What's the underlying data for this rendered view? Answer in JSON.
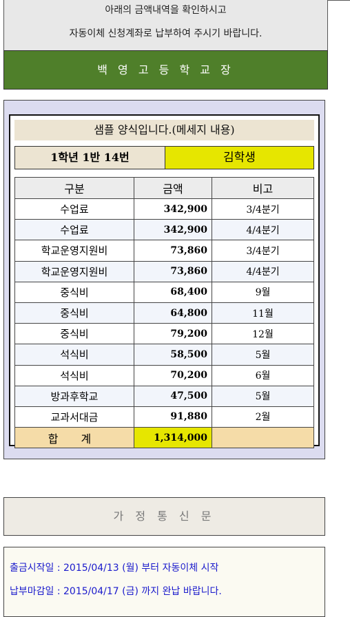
{
  "notice": {
    "line1": "아래의 금액내역을 확인하시고",
    "line2": "자동이체 신청계좌로 납부하여 주시기 바랍니다."
  },
  "principal_banner": "백 영 고 등 학 교 장",
  "form": {
    "message_title": "샘플 양식입니다.(메세지 내용)",
    "student_class": "1학년 1반 14번",
    "student_name": "김학생",
    "headers": {
      "item": "구분",
      "amount": "금액",
      "note": "비고"
    },
    "rows": [
      {
        "item": "수업료",
        "amount": "342,900",
        "note": "3/4분기"
      },
      {
        "item": "수업료",
        "amount": "342,900",
        "note": "4/4분기"
      },
      {
        "item": "학교운영지원비",
        "amount": "73,860",
        "note": "3/4분기"
      },
      {
        "item": "학교운영지원비",
        "amount": "73,860",
        "note": "4/4분기"
      },
      {
        "item": "중식비",
        "amount": "68,400",
        "note": "9월"
      },
      {
        "item": "중식비",
        "amount": "64,800",
        "note": "11월"
      },
      {
        "item": "중식비",
        "amount": "79,200",
        "note": "12월"
      },
      {
        "item": "석식비",
        "amount": "58,500",
        "note": "5월"
      },
      {
        "item": "석식비",
        "amount": "70,200",
        "note": "6월"
      },
      {
        "item": "방과후학교",
        "amount": "47,500",
        "note": "5월"
      },
      {
        "item": "교과서대금",
        "amount": "91,880",
        "note": "2월"
      }
    ],
    "total": {
      "label": "합 계",
      "amount": "1,314,000",
      "note": ""
    }
  },
  "home_letter_button": "가 정 통 신 문",
  "schedule": {
    "withdraw_start": "출금시작일 : 2015/04/13 (월) 부터 자동이체 시작",
    "payment_deadline": "납부마감일 : 2015/04/17 (금) 까지 완납 바랍니다."
  }
}
